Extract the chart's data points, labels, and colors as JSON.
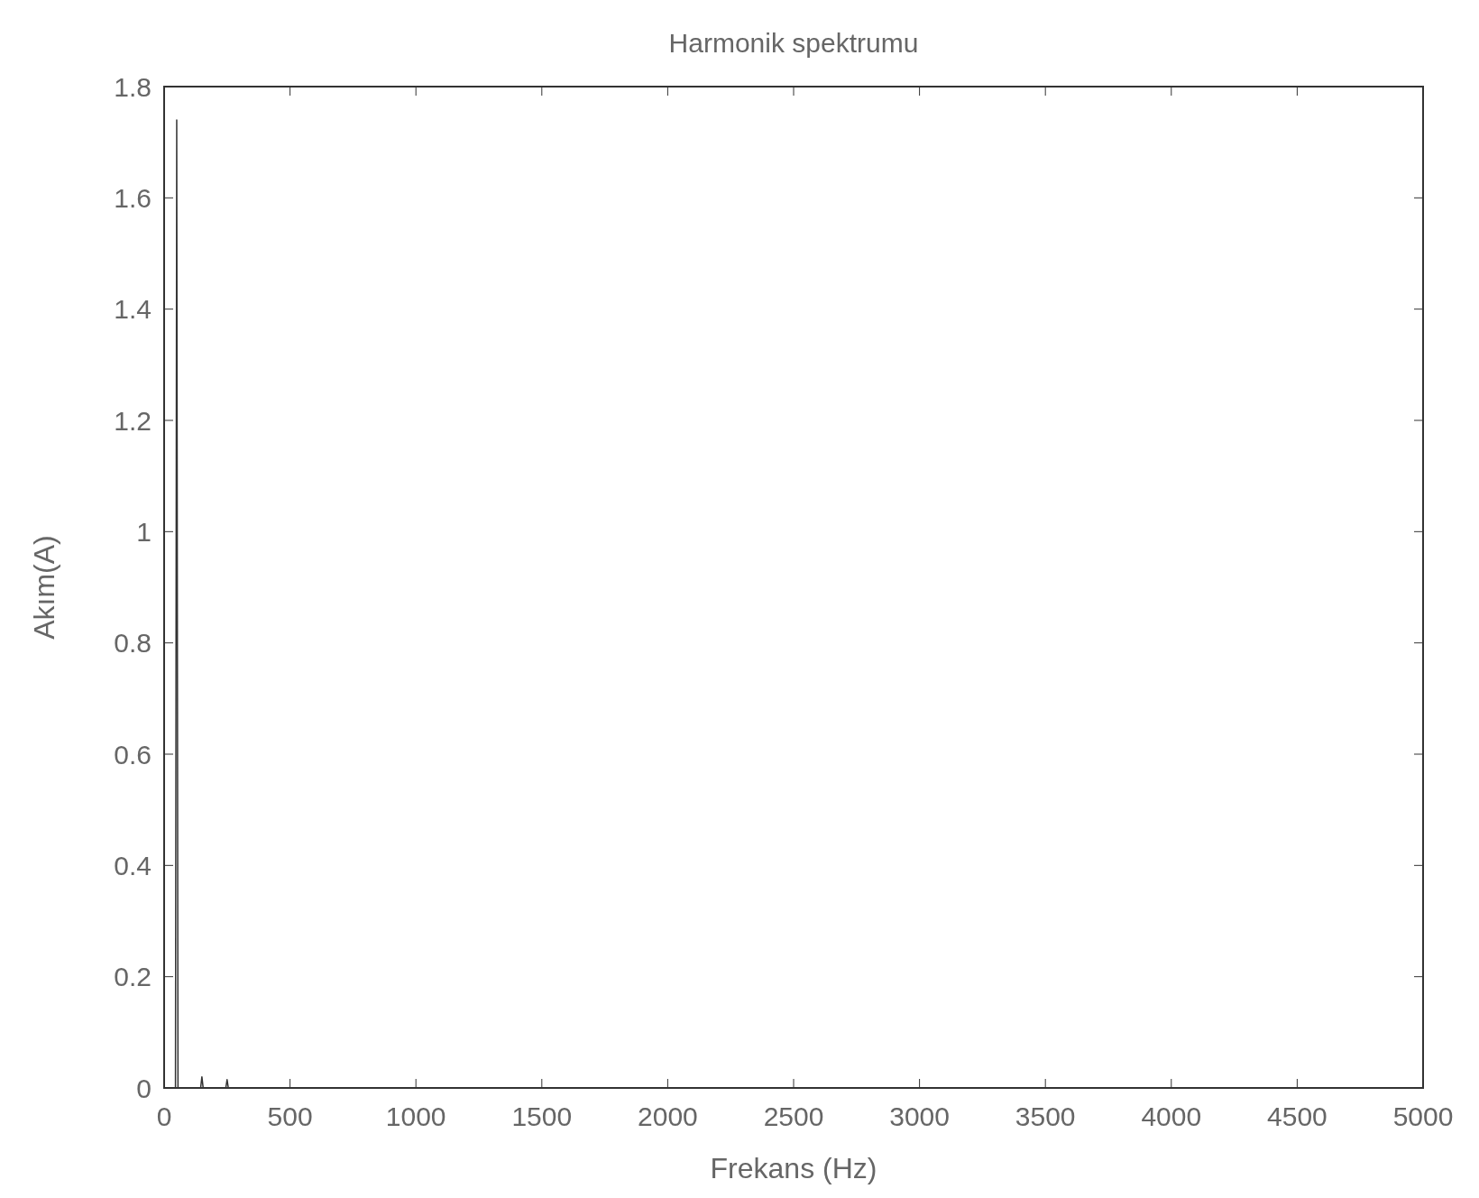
{
  "chart_data": {
    "type": "line",
    "title": "Harmonik spektrumu",
    "xlabel": "Frekans (Hz)",
    "ylabel": "Akım(A)",
    "x": [
      0,
      45,
      50,
      55,
      145,
      150,
      155,
      245,
      250,
      255,
      5000
    ],
    "series": [
      {
        "color": "#333333",
        "values": [
          0,
          0,
          1.74,
          0,
          0,
          0.02,
          0,
          0,
          0.015,
          0,
          0
        ]
      }
    ],
    "xlim": [
      0,
      5000
    ],
    "xticks": [
      0,
      500,
      1000,
      1500,
      2000,
      2500,
      3000,
      3500,
      4000,
      4500,
      5000
    ],
    "ylim": [
      0,
      1.8
    ],
    "yticks": [
      0,
      0.2,
      0.4,
      0.6,
      0.8,
      1,
      1.2,
      1.4,
      1.6,
      1.8
    ],
    "grid": false,
    "marker": "none",
    "line_style": "solid"
  }
}
